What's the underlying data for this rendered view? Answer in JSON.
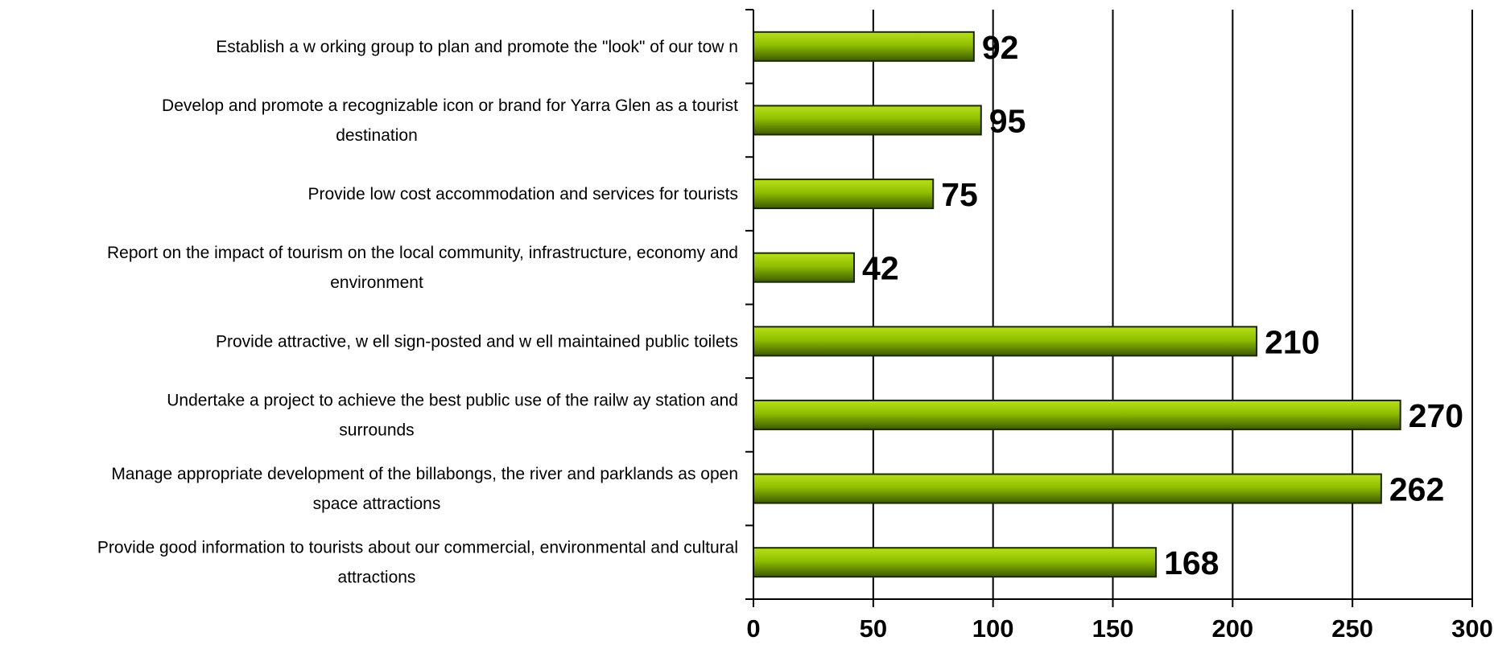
{
  "chart_data": {
    "type": "bar",
    "orientation": "horizontal",
    "categories": [
      [
        "Establish a w orking group to plan and promote the \"look\" of our tow n"
      ],
      [
        "Develop and  promote a recognizable icon or brand for Yarra Glen as a tourist",
        "destination"
      ],
      [
        "Provide low  cost accommodation and services for tourists"
      ],
      [
        "Report on the impact of tourism on the local community, infrastructure, economy and",
        "environment"
      ],
      [
        "Provide attractive, w ell sign-posted and w ell maintained public toilets"
      ],
      [
        "Undertake a project to  achieve the best public use of the railw ay station and",
        "surrounds"
      ],
      [
        "Manage appropriate development of the billabongs, the river and parklands as open",
        "space attractions"
      ],
      [
        "Provide good information to tourists about our commercial, environmental and cultural",
        "attractions"
      ]
    ],
    "values": [
      92,
      95,
      75,
      42,
      210,
      270,
      262,
      168
    ],
    "xlim": [
      0,
      300
    ],
    "xticks": [
      0,
      50,
      100,
      150,
      200,
      250,
      300
    ],
    "grid": "vertical",
    "legend": "none",
    "colors": {
      "bar_light": "#b8e01a",
      "bar_mid": "#8fbf00",
      "bar_dark": "#3d5a00",
      "bar_edge": "#1a2a00",
      "axis": "#000000"
    }
  }
}
